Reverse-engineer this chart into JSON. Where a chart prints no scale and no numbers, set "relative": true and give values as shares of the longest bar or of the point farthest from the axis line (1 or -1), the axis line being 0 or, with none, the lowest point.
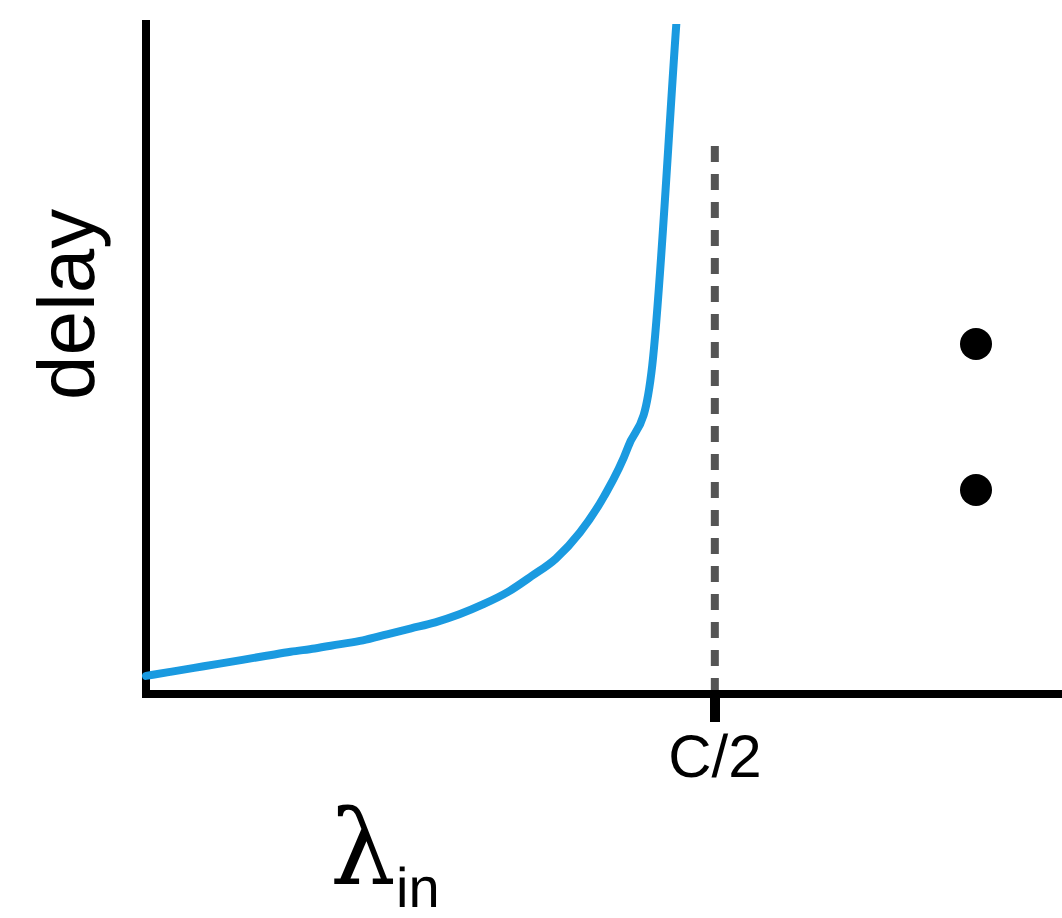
{
  "chart_data": {
    "type": "line",
    "relative": true,
    "xlabel": "λ$_{in}$",
    "ylabel": "delay",
    "categories": [
      null,
      null,
      null,
      null,
      null,
      null,
      null,
      null,
      null,
      null,
      null,
      null,
      null,
      null,
      null,
      null,
      null,
      null,
      null,
      null,
      null,
      null,
      null,
      null,
      null,
      null,
      null,
      null,
      null,
      null,
      null,
      null,
      null,
      null,
      null,
      null,
      null,
      null,
      null
    ],
    "series": [
      {
        "color": "#1a9ae0",
        "values": [
          0.027,
          0.033,
          0.039,
          0.045,
          0.051,
          0.057,
          0.063,
          0.068,
          0.074,
          0.08,
          0.089,
          0.098,
          0.107,
          0.119,
          0.134,
          0.152,
          0.176,
          0.202,
          0.241,
          0.295,
          0.369,
          0.49,
          1,
          null,
          null,
          null,
          null,
          null,
          null,
          null,
          null,
          null,
          null,
          null,
          null,
          null,
          null,
          null,
          null
        ]
      }
    ],
    "annotations": [
      "C/2"
    ],
    "legend": false,
    "grid": false,
    "marker": "none",
    "line_style": "solid"
  }
}
